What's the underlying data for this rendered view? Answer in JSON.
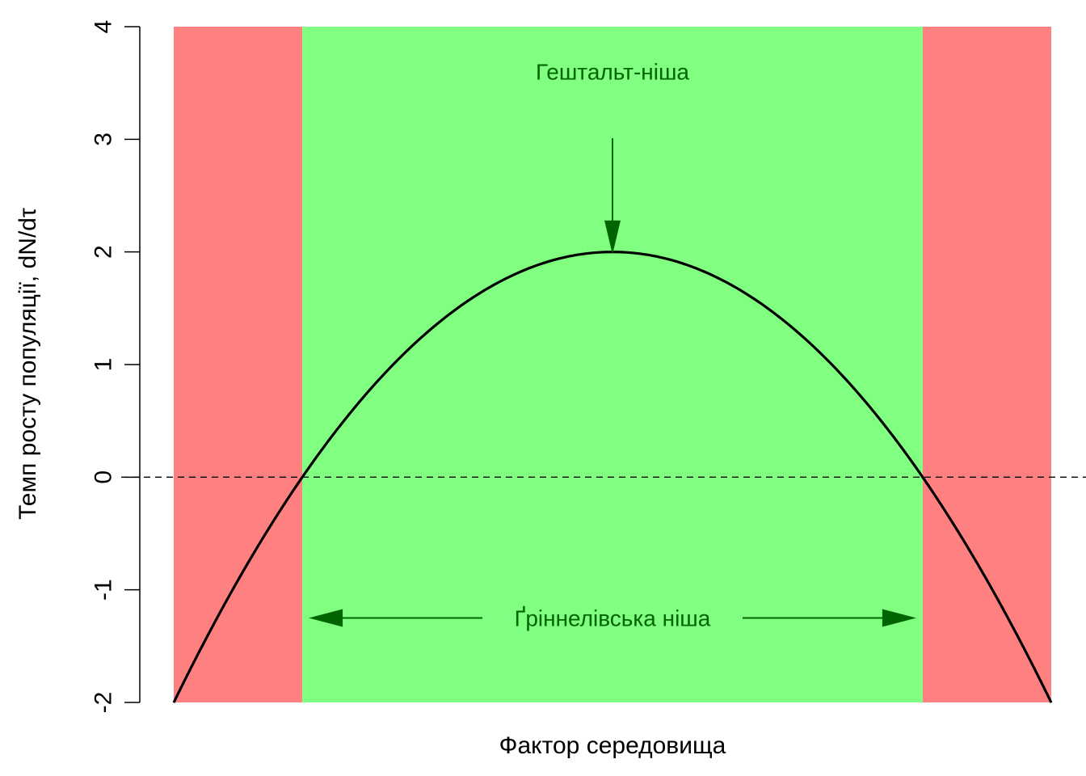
{
  "chart_data": {
    "type": "line",
    "xlabel": "Фактор середовища",
    "ylabel": "Темп росту популяції, dN/dτ",
    "ylim": [
      -2,
      4
    ],
    "y_ticks": [
      "-2",
      "-1",
      "0",
      "1",
      "2",
      "3",
      "4"
    ],
    "xlim": [
      -2,
      2
    ],
    "curve": {
      "form": "parabola",
      "vertex": [
        0,
        2
      ],
      "roots": [
        -1.414,
        1.414
      ],
      "endpoints_y": -2
    },
    "reference_line": {
      "y": 0,
      "style": "dashed"
    },
    "regions": [
      {
        "from": -2,
        "to": -1.414,
        "color": "#ff8080"
      },
      {
        "from": -1.414,
        "to": 1.414,
        "color": "#80ff80"
      },
      {
        "from": 1.414,
        "to": 2,
        "color": "#ff8080"
      }
    ],
    "annotations": [
      {
        "text": "Гештальт-ніша",
        "x": 0,
        "y": 3.6,
        "arrow_to": [
          0,
          2.15
        ]
      },
      {
        "text": "Ґріннелівська ніша",
        "x": 0,
        "y": -1.25,
        "span": [
          -1.414,
          1.414
        ]
      }
    ],
    "colors": {
      "curve": "#000000",
      "annotation": "#006400",
      "bad_zone": "#ff8080",
      "good_zone": "#80ff80"
    }
  }
}
